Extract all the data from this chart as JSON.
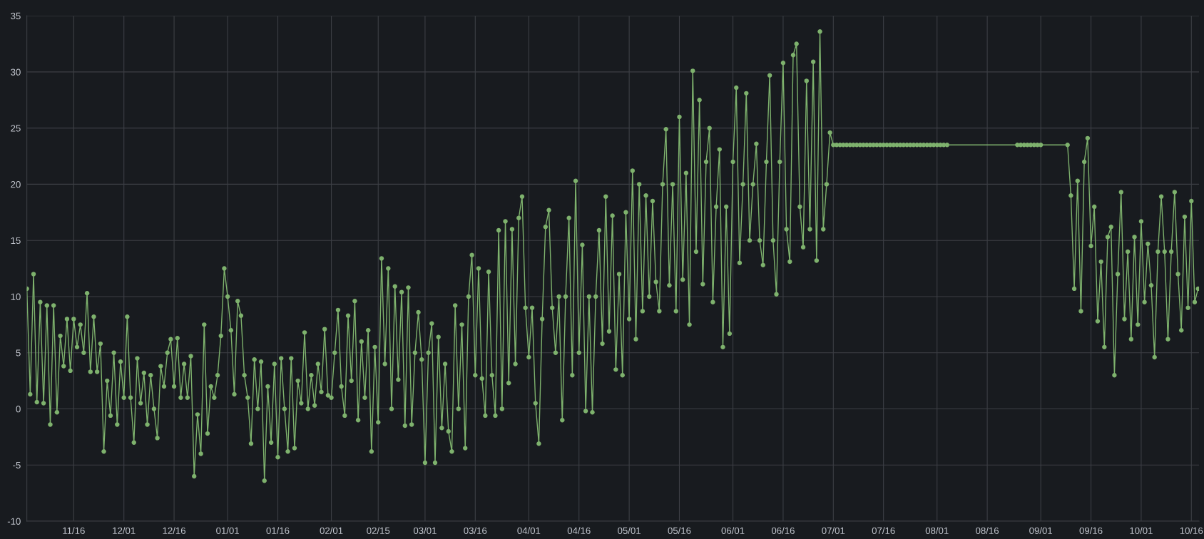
{
  "chart_data": {
    "type": "line",
    "categories": [
      null,
      null,
      null,
      null,
      null,
      null,
      null,
      null,
      null,
      null,
      null,
      null,
      null,
      null,
      "11/16",
      null,
      null,
      null,
      null,
      null,
      null,
      null,
      null,
      null,
      null,
      null,
      null,
      null,
      null,
      "12/01",
      null,
      null,
      null,
      null,
      null,
      null,
      null,
      null,
      null,
      null,
      null,
      null,
      null,
      null,
      "12/16",
      null,
      null,
      null,
      null,
      null,
      null,
      null,
      null,
      null,
      null,
      null,
      null,
      null,
      null,
      null,
      "01/01",
      null,
      null,
      null,
      null,
      null,
      null,
      null,
      null,
      null,
      null,
      null,
      null,
      null,
      null,
      "01/16",
      null,
      null,
      null,
      null,
      null,
      null,
      null,
      null,
      null,
      null,
      null,
      null,
      null,
      null,
      null,
      "02/01",
      null,
      null,
      null,
      null,
      null,
      null,
      null,
      null,
      null,
      null,
      null,
      null,
      null,
      "02/15",
      null,
      null,
      null,
      null,
      null,
      null,
      null,
      null,
      null,
      null,
      null,
      null,
      null,
      "03/01",
      null,
      null,
      null,
      null,
      null,
      null,
      null,
      null,
      null,
      null,
      null,
      null,
      null,
      null,
      "03/16",
      null,
      null,
      null,
      null,
      null,
      null,
      null,
      null,
      null,
      null,
      null,
      null,
      null,
      null,
      null,
      "04/01",
      null,
      null,
      null,
      null,
      null,
      null,
      null,
      null,
      null,
      null,
      null,
      null,
      null,
      null,
      "04/16",
      null,
      null,
      null,
      null,
      null,
      null,
      null,
      null,
      null,
      null,
      null,
      null,
      null,
      null,
      "05/01",
      null,
      null,
      null,
      null,
      null,
      null,
      null,
      null,
      null,
      null,
      null,
      null,
      null,
      null,
      "05/16",
      null,
      null,
      null,
      null,
      null,
      null,
      null,
      null,
      null,
      null,
      null,
      null,
      null,
      null,
      null,
      "06/01",
      null,
      null,
      null,
      null,
      null,
      null,
      null,
      null,
      null,
      null,
      null,
      null,
      null,
      null,
      "06/16",
      null,
      null,
      null,
      null,
      null,
      null,
      null,
      null,
      null,
      null,
      null,
      null,
      null,
      null,
      "07/01",
      null,
      null,
      null,
      null,
      null,
      null,
      null,
      null,
      null,
      null,
      null,
      null,
      null,
      null,
      "07/16",
      null,
      null,
      null,
      null,
      null,
      null,
      null,
      null,
      null,
      null,
      null,
      null,
      null,
      null,
      null,
      "08/01",
      null,
      null,
      null,
      null,
      null,
      null,
      null,
      null,
      null,
      null,
      null,
      null,
      null,
      null,
      "08/16",
      null,
      null,
      null,
      null,
      null,
      null,
      null,
      null,
      null,
      null,
      null,
      null,
      null,
      null,
      null,
      "09/01",
      null,
      null,
      null,
      null,
      null,
      null,
      null,
      null,
      null,
      null,
      null,
      null,
      null,
      null,
      "09/16",
      null,
      null,
      null,
      null,
      null,
      null,
      null,
      null,
      null,
      null,
      null,
      null,
      null,
      null,
      "10/01",
      null,
      null,
      null,
      null,
      null,
      null,
      null,
      null,
      null,
      null,
      null,
      null,
      null,
      null,
      "10/16",
      null,
      null
    ],
    "series": [
      {
        "color": "#7eb26d",
        "values": [
          10.7,
          1.3,
          12.0,
          0.6,
          9.5,
          0.5,
          9.2,
          -1.4,
          9.2,
          -0.3,
          6.5,
          3.8,
          8.0,
          3.4,
          8.0,
          5.5,
          7.5,
          5.0,
          10.3,
          3.3,
          8.2,
          3.3,
          5.8,
          -3.8,
          2.5,
          -0.6,
          5.0,
          -1.4,
          4.2,
          1.0,
          8.2,
          1.0,
          -3.0,
          4.5,
          0.5,
          3.2,
          -1.4,
          3.0,
          0.0,
          -2.6,
          3.8,
          2.0,
          5.0,
          6.2,
          2.0,
          6.3,
          1.0,
          4.0,
          1.0,
          4.7,
          -6.0,
          -0.5,
          -4.0,
          7.5,
          -2.2,
          2.0,
          1.0,
          3.0,
          6.5,
          12.5,
          10.0,
          7.0,
          1.3,
          9.6,
          8.3,
          3.0,
          1.0,
          -3.1,
          4.4,
          0.0,
          4.2,
          -6.4,
          2.0,
          -3.0,
          4.0,
          -4.3,
          4.5,
          0.0,
          -3.8,
          4.5,
          -3.5,
          2.5,
          0.5,
          6.8,
          0.0,
          3.0,
          0.3,
          4.0,
          1.5,
          7.1,
          1.2,
          1.0,
          5.0,
          8.8,
          2.0,
          -0.6,
          8.3,
          2.5,
          9.6,
          -1.0,
          6.0,
          1.0,
          7.0,
          -3.8,
          5.5,
          -1.2,
          13.4,
          4.0,
          12.5,
          0.0,
          10.9,
          2.6,
          10.4,
          -1.5,
          10.8,
          -1.4,
          5.0,
          8.6,
          4.4,
          -4.8,
          5.0,
          7.6,
          -4.8,
          6.4,
          -1.7,
          4.0,
          -2.0,
          -3.8,
          9.2,
          0.0,
          7.5,
          -3.5,
          10.0,
          13.7,
          3.0,
          12.5,
          2.7,
          -0.6,
          12.2,
          3.0,
          -0.6,
          15.9,
          0.0,
          16.7,
          2.3,
          16.0,
          4.0,
          17.0,
          18.9,
          9.0,
          4.6,
          9.0,
          0.5,
          -3.1,
          8.0,
          16.2,
          17.7,
          9.0,
          5.0,
          10.0,
          -1.0,
          10.0,
          17.0,
          3.0,
          20.3,
          5.0,
          14.6,
          -0.2,
          10.0,
          -0.3,
          10.0,
          15.9,
          5.8,
          18.9,
          6.9,
          17.2,
          3.5,
          12.0,
          3.0,
          17.5,
          8.0,
          21.2,
          6.2,
          20.0,
          8.7,
          19.0,
          10.0,
          18.5,
          11.3,
          8.7,
          20.0,
          24.9,
          11.0,
          20.0,
          8.7,
          26.0,
          11.5,
          21.0,
          7.5,
          30.1,
          14.0,
          27.5,
          11.1,
          22.0,
          25.0,
          9.5,
          18.0,
          23.1,
          5.5,
          18.0,
          6.7,
          22.0,
          28.6,
          13.0,
          20.0,
          28.1,
          15.0,
          20.0,
          23.6,
          15.0,
          12.8,
          22.0,
          29.7,
          15.0,
          10.2,
          22.0,
          30.8,
          16.0,
          13.1,
          31.5,
          32.5,
          18.0,
          14.4,
          29.2,
          16.0,
          30.9,
          13.2,
          33.6,
          16.0,
          20.0,
          24.6,
          23.5,
          23.5,
          23.5,
          23.5,
          23.5,
          23.5,
          23.5,
          23.5,
          23.5,
          23.5,
          23.5,
          23.5,
          23.5,
          23.5,
          23.5,
          23.5,
          23.5,
          23.5,
          23.5,
          23.5,
          23.5,
          23.5,
          23.5,
          23.5,
          23.5,
          23.5,
          23.5,
          23.5,
          23.5,
          23.5,
          23.5,
          23.5,
          23.5,
          23.5,
          23.5,
          null,
          null,
          null,
          null,
          null,
          null,
          null,
          null,
          null,
          null,
          null,
          null,
          null,
          null,
          null,
          null,
          null,
          null,
          null,
          null,
          23.5,
          23.5,
          23.5,
          23.5,
          23.5,
          23.5,
          23.5,
          23.5,
          null,
          null,
          null,
          null,
          null,
          null,
          null,
          23.5,
          19.0,
          10.7,
          20.3,
          8.7,
          22.0,
          24.1,
          14.5,
          18.0,
          7.8,
          13.1,
          5.5,
          15.3,
          16.2,
          3.0,
          12.0,
          19.3,
          8.0,
          14.0,
          6.2,
          15.3,
          7.5,
          16.7,
          9.5,
          14.7,
          11.0,
          4.6,
          14.0,
          18.9,
          14.0,
          6.2,
          14.0,
          19.3,
          12.0,
          7.0,
          17.1,
          9.0,
          18.5,
          9.5,
          10.7
        ]
      }
    ],
    "ylim": [
      -10,
      35
    ],
    "yticks": [
      -10,
      -5,
      0,
      5,
      10,
      15,
      20,
      25,
      30,
      35
    ],
    "grid": true,
    "marker": "circle",
    "line_style": "solid"
  }
}
